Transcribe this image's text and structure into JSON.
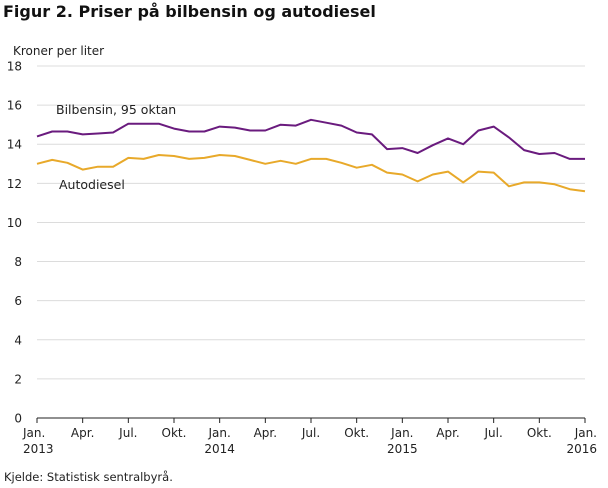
{
  "figure": {
    "title": "Figur 2. Priser på bilbensin og autodiesel",
    "source": "Kjelde: Statistisk sentralbyrå."
  },
  "chart_data": {
    "type": "line",
    "title": "Figur 2. Priser på bilbensin og autodiesel",
    "ylabel": "Kroner per liter",
    "xlabel": "",
    "ylim": [
      0,
      18
    ],
    "y_ticks": [
      0,
      2,
      4,
      6,
      8,
      10,
      12,
      14,
      16,
      18
    ],
    "grid": "horizontal",
    "x_tick_labels": [
      {
        "month": "Jan.",
        "year": "2013"
      },
      {
        "month": "Apr.",
        "year": ""
      },
      {
        "month": "Jul.",
        "year": ""
      },
      {
        "month": "Okt.",
        "year": ""
      },
      {
        "month": "Jan.",
        "year": "2014"
      },
      {
        "month": "Apr.",
        "year": ""
      },
      {
        "month": "Jul.",
        "year": ""
      },
      {
        "month": "Okt.",
        "year": ""
      },
      {
        "month": "Jan.",
        "year": "2015"
      },
      {
        "month": "Apr.",
        "year": ""
      },
      {
        "month": "Jul.",
        "year": ""
      },
      {
        "month": "Okt.",
        "year": ""
      },
      {
        "month": "Jan.",
        "year": "2016"
      }
    ],
    "x": [
      "2013-01",
      "2013-02",
      "2013-03",
      "2013-04",
      "2013-05",
      "2013-06",
      "2013-07",
      "2013-08",
      "2013-09",
      "2013-10",
      "2013-11",
      "2013-12",
      "2014-01",
      "2014-02",
      "2014-03",
      "2014-04",
      "2014-05",
      "2014-06",
      "2014-07",
      "2014-08",
      "2014-09",
      "2014-10",
      "2014-11",
      "2014-12",
      "2015-01",
      "2015-02",
      "2015-03",
      "2015-04",
      "2015-05",
      "2015-06",
      "2015-07",
      "2015-08",
      "2015-09",
      "2015-10",
      "2015-11",
      "2015-12",
      "2016-01"
    ],
    "series": [
      {
        "name": "Bilbensin, 95 oktan",
        "color": "#6a1b7e",
        "values": [
          14.4,
          14.65,
          14.65,
          14.5,
          14.55,
          14.6,
          15.05,
          15.05,
          15.05,
          14.8,
          14.65,
          14.65,
          14.9,
          14.85,
          14.7,
          14.7,
          15.0,
          14.95,
          15.25,
          15.1,
          14.95,
          14.6,
          14.5,
          13.75,
          13.8,
          13.55,
          13.95,
          14.3,
          14.0,
          14.7,
          14.9,
          14.35,
          13.7,
          13.5,
          13.55,
          13.25,
          13.25
        ]
      },
      {
        "name": "Autodiesel",
        "color": "#e8a92a",
        "values": [
          13.0,
          13.2,
          13.05,
          12.7,
          12.85,
          12.85,
          13.3,
          13.25,
          13.45,
          13.4,
          13.25,
          13.3,
          13.45,
          13.4,
          13.2,
          13.0,
          13.15,
          13.0,
          13.25,
          13.25,
          13.05,
          12.8,
          12.95,
          12.55,
          12.45,
          12.1,
          12.45,
          12.6,
          12.05,
          12.6,
          12.55,
          11.85,
          12.05,
          12.05,
          11.95,
          11.7,
          11.6
        ]
      }
    ]
  }
}
